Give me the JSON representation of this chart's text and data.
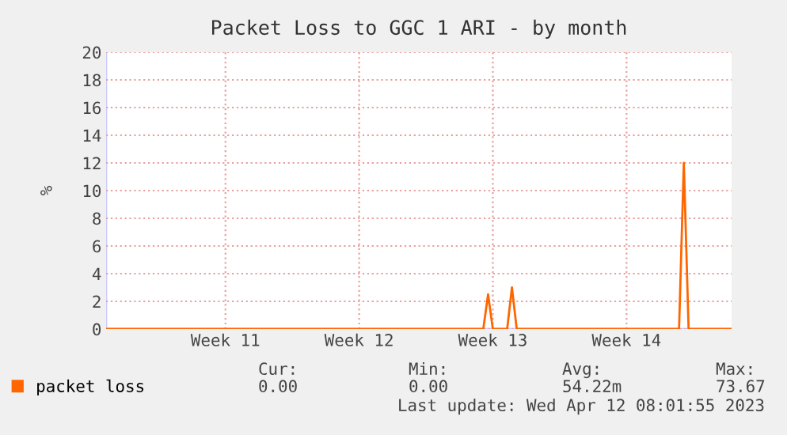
{
  "chart_data": {
    "type": "line",
    "title": "Packet Loss to GGC 1 ARI - by month",
    "ylabel": "%",
    "categories": [
      null,
      null,
      null,
      null,
      null,
      null,
      null,
      null,
      null,
      null,
      null,
      null,
      null,
      null,
      null,
      null,
      null,
      null,
      null,
      null,
      null,
      null,
      null,
      null,
      null,
      "Week 11",
      null,
      null,
      null,
      null,
      null,
      null,
      null,
      null,
      null,
      null,
      null,
      null,
      null,
      null,
      null,
      null,
      null,
      null,
      null,
      null,
      null,
      null,
      null,
      null,
      null,
      null,
      null,
      "Week 12",
      null,
      null,
      null,
      null,
      null,
      null,
      null,
      null,
      null,
      null,
      null,
      null,
      null,
      null,
      null,
      null,
      null,
      null,
      null,
      null,
      null,
      null,
      null,
      null,
      null,
      null,
      null,
      "Week 13",
      null,
      null,
      null,
      null,
      null,
      null,
      null,
      null,
      null,
      null,
      null,
      null,
      null,
      null,
      null,
      null,
      null,
      null,
      null,
      null,
      null,
      null,
      null,
      null,
      null,
      null,
      null,
      "Week 14",
      null,
      null,
      null,
      null,
      null,
      null,
      null,
      null,
      null,
      null,
      null,
      null,
      null,
      null,
      null,
      null,
      null,
      null,
      null,
      null,
      null,
      null
    ],
    "series": [
      {
        "name": "packet loss",
        "color": "#ff6600",
        "values": [
          0,
          0,
          0,
          0,
          0,
          0,
          0,
          0,
          0,
          0,
          0,
          0,
          0,
          0,
          0,
          0,
          0,
          0,
          0,
          0,
          0,
          0,
          0,
          0,
          0,
          0,
          0,
          0,
          0,
          0,
          0,
          0,
          0,
          0,
          0,
          0,
          0,
          0,
          0,
          0,
          0,
          0,
          0,
          0,
          0,
          0,
          0,
          0,
          0,
          0,
          0,
          0,
          0,
          0,
          0,
          0,
          0,
          0,
          0,
          0,
          0,
          0,
          0,
          0,
          0,
          0,
          0,
          0,
          0,
          0,
          0,
          0,
          0,
          0,
          0,
          0,
          0,
          0,
          0,
          0,
          2.5,
          0,
          0,
          0,
          0,
          3,
          0,
          0,
          0,
          0,
          0,
          0,
          0,
          0,
          0,
          0,
          0,
          0,
          0,
          0,
          0,
          0,
          0,
          0,
          0,
          0,
          0,
          0,
          0,
          0,
          0,
          0,
          0,
          0,
          0,
          0,
          0,
          0,
          0,
          0,
          0,
          12,
          0,
          0,
          0,
          0,
          0,
          0,
          0,
          0,
          0,
          0
        ]
      }
    ],
    "ylim": [
      0,
      20
    ],
    "yticks": [
      0,
      2,
      4,
      6,
      8,
      10,
      12,
      14,
      16,
      18,
      20
    ],
    "grid": true,
    "legend": "bottom left",
    "marker": "none",
    "line_style": "solid",
    "annotations": [
      "Cur:",
      "0.00",
      "Min:",
      "0.00",
      "Avg:",
      "54.22m",
      "Max:",
      "73.67",
      "Last update: Wed Apr 12 08:01:55 2023"
    ]
  }
}
